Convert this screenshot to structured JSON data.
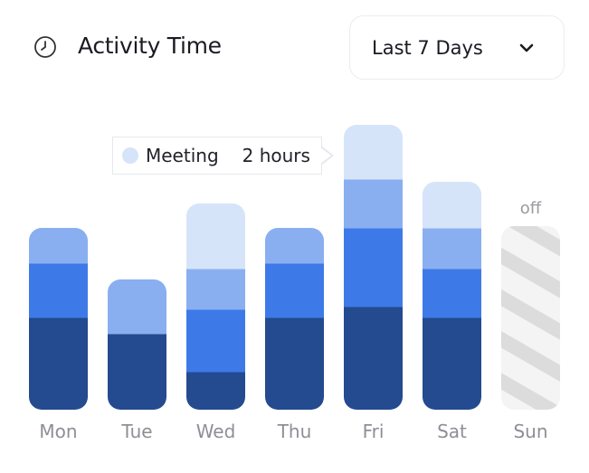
{
  "header": {
    "title": "Activity Time",
    "icon": "clock-icon",
    "range_select": {
      "value": "Last 7 Days",
      "icon": "chevron-down-icon"
    }
  },
  "tooltip": {
    "series": "Meeting",
    "value": "2 hours",
    "day": "Fri"
  },
  "chart_data": {
    "type": "bar",
    "stacked": true,
    "unit": "hours",
    "categories": [
      "Mon",
      "Tue",
      "Wed",
      "Thu",
      "Fri",
      "Sat",
      "Sun"
    ],
    "series": [
      {
        "color": "#244a8f",
        "values": [
          3.4,
          2.8,
          1.4,
          3.4,
          3.8,
          3.4,
          null
        ]
      },
      {
        "color": "#3d7ae8",
        "values": [
          2.0,
          0,
          2.3,
          2.0,
          2.9,
          1.8,
          null
        ]
      },
      {
        "color": "#8aaff0",
        "values": [
          1.3,
          2.0,
          1.5,
          1.3,
          1.8,
          1.5,
          null
        ]
      },
      {
        "name": "Meeting",
        "color": "#d6e4fa",
        "values": [
          0,
          0,
          2.4,
          0,
          2.0,
          1.7,
          null
        ]
      }
    ],
    "off_days": {
      "Sun": "off"
    },
    "axes_visible": false,
    "grid": false
  }
}
